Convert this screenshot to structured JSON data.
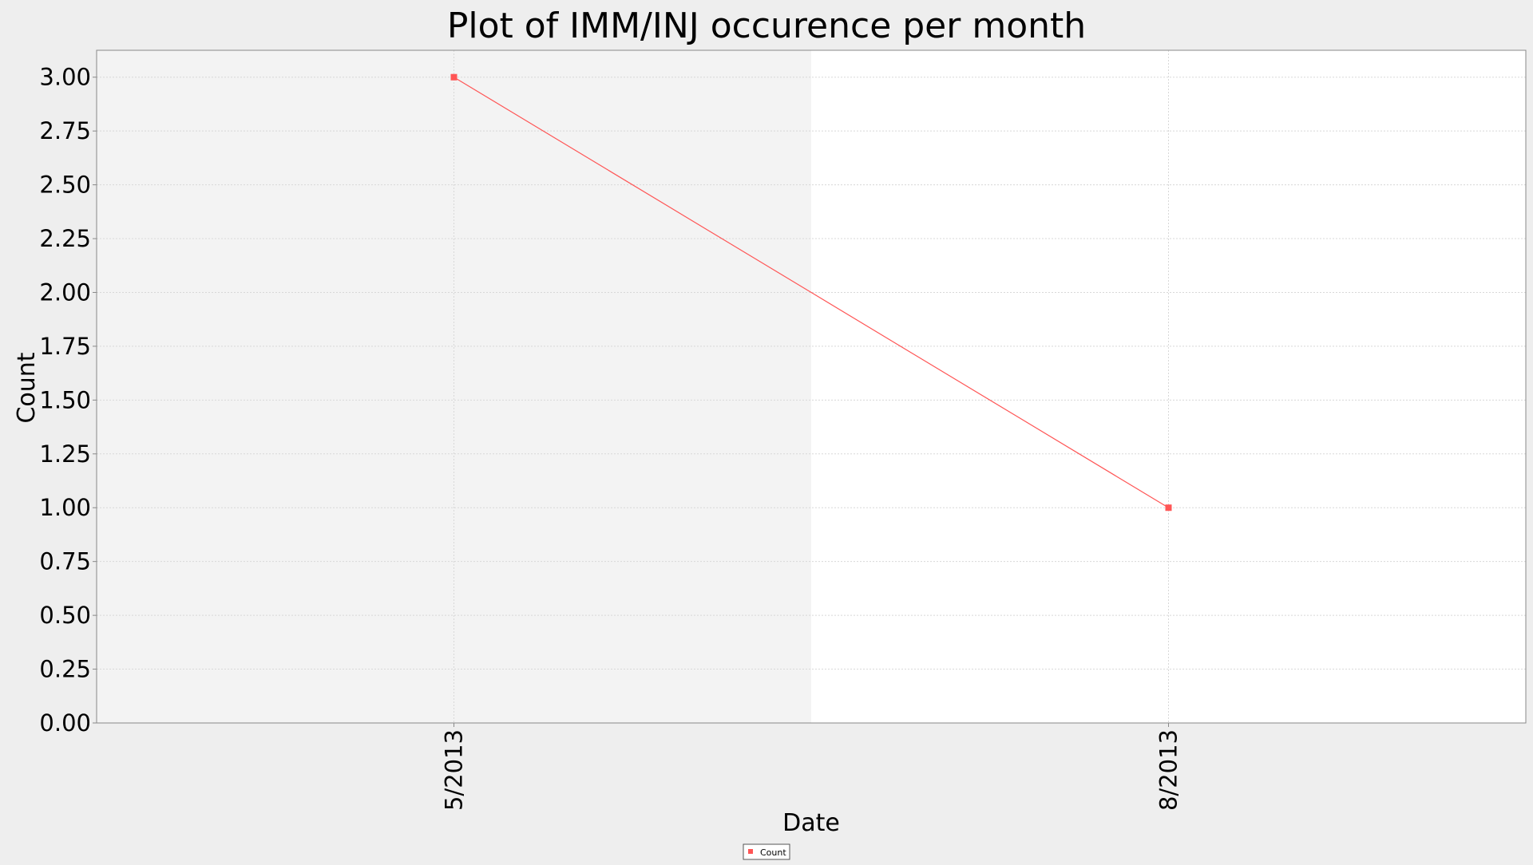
{
  "chart_data": {
    "type": "line",
    "title": "Plot of IMM/INJ occurence per month",
    "xlabel": "Date",
    "ylabel": "Count",
    "categories": [
      "5/2013",
      "8/2013"
    ],
    "series": [
      {
        "name": "Count",
        "values": [
          3,
          1
        ],
        "color": "#ff5555"
      }
    ],
    "ylim": [
      0,
      3.125
    ],
    "yticks": [
      0,
      0.25,
      0.5,
      0.75,
      1,
      1.25,
      1.5,
      1.75,
      2,
      2.25,
      2.5,
      2.75,
      3
    ],
    "ytick_labels": [
      "0.00",
      "0.25",
      "0.50",
      "0.75",
      "1.00",
      "1.25",
      "1.50",
      "1.75",
      "2.00",
      "2.25",
      "2.50",
      "2.75",
      "3.00"
    ],
    "grid": true,
    "legend_position": "bottom-center",
    "colors": {
      "page_background": "#eeeeee",
      "plot_background": "#ffffff",
      "alternate_band": "#f3f3f3",
      "gridline": "#d8d8d8",
      "axis": "#888888"
    }
  }
}
